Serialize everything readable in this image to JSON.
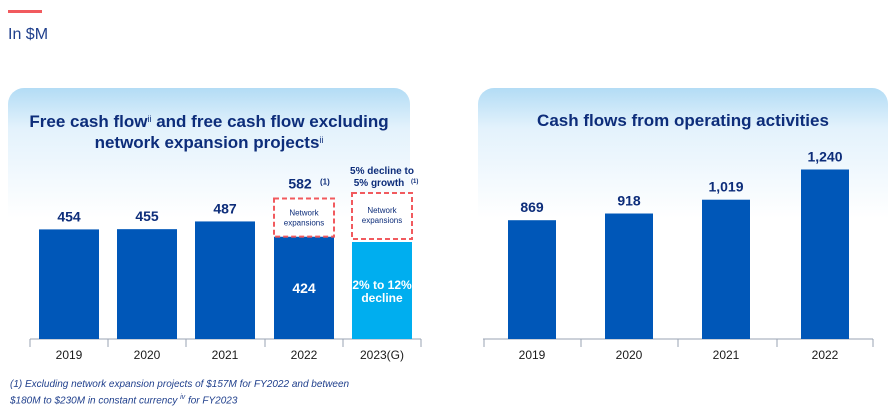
{
  "header": {
    "unit": "In $M"
  },
  "colors": {
    "bar": "#0057b8",
    "bar_light": "#00aeef",
    "dashed": "#f15a5e",
    "label": "#0d2d7a",
    "accent": "#f15a5e"
  },
  "chart_data": [
    {
      "type": "bar",
      "title": "Free cash flow",
      "title_sup": "ii",
      "title_2": "and free cash flow excluding network expansion projects",
      "title_2_sup": "ii",
      "categories": [
        "2019",
        "2020",
        "2021",
        "2022",
        "2023(G)"
      ],
      "values": [
        454,
        455,
        487,
        582,
        null
      ],
      "value_labels": [
        "454",
        "455",
        "487",
        "582",
        ""
      ],
      "value_label_sup_2022": "(1)",
      "stacked_2022": {
        "base": 424,
        "base_label": "424",
        "segment_label": "Network expansions"
      },
      "guidance_2023": {
        "segment_label": "Network expansions",
        "top_label_line1": "5% decline to",
        "top_label_line2": "5% growth",
        "top_label_sup": "(1)",
        "base_label_line1": "2% to 12%",
        "base_label_line2": "decline"
      }
    },
    {
      "type": "bar",
      "title": "Cash flows from operating activities",
      "categories": [
        "2019",
        "2020",
        "2021",
        "2022"
      ],
      "values": [
        869,
        918,
        1019,
        1240
      ],
      "value_labels": [
        "869",
        "918",
        "1,019",
        "1,240"
      ]
    }
  ],
  "footnote": {
    "line1": "(1) Excluding network expansion projects of $157M for FY2022 and between",
    "line2a": "$180M to $230M in constant currency",
    "line2_sup": "iv",
    "line2b": "for FY2023"
  }
}
